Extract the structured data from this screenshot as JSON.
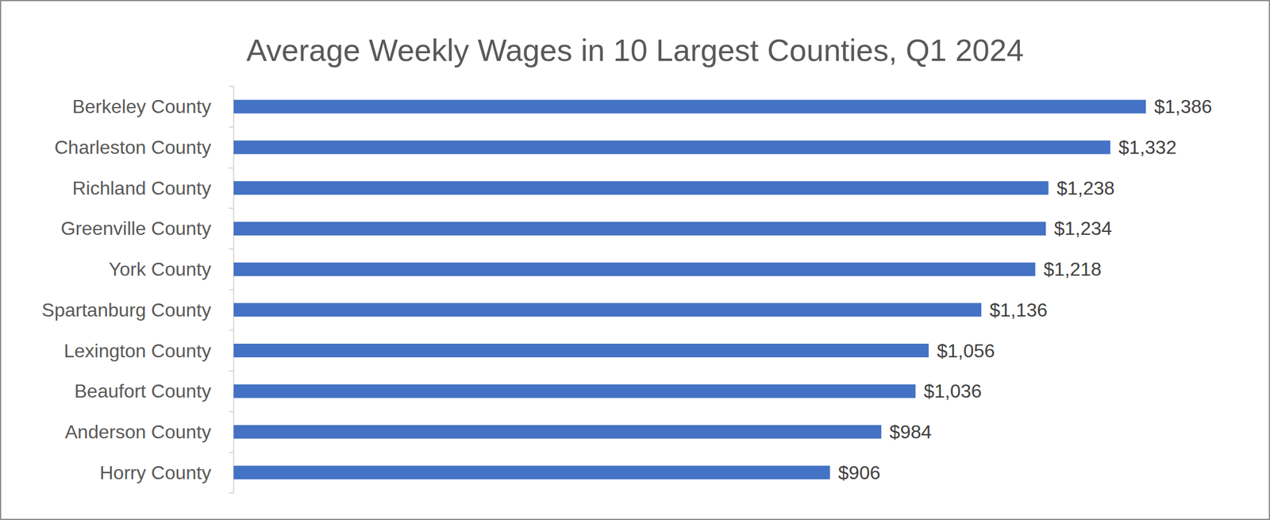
{
  "chart_data": {
    "type": "bar",
    "title": "Average Weekly Wages in 10 Largest Counties, Q1 2024",
    "orientation": "horizontal",
    "categories": [
      "Berkeley County",
      "Charleston County",
      "Richland County",
      "Greenville County",
      "York County",
      "Spartanburg County",
      "Lexington County",
      "Beaufort County",
      "Anderson County",
      "Horry County"
    ],
    "values": [
      1386,
      1332,
      1238,
      1234,
      1218,
      1136,
      1056,
      1036,
      984,
      906
    ],
    "value_labels": [
      "$1,386",
      "$1,332",
      "$1,238",
      "$1,234",
      "$1,218",
      "$1,136",
      "$1,056",
      "$1,036",
      "$984",
      "$906"
    ],
    "color": "#4472c4",
    "xlim": [
      0,
      1500
    ],
    "grid": false,
    "data_labels": true,
    "tick_labels": "y"
  }
}
